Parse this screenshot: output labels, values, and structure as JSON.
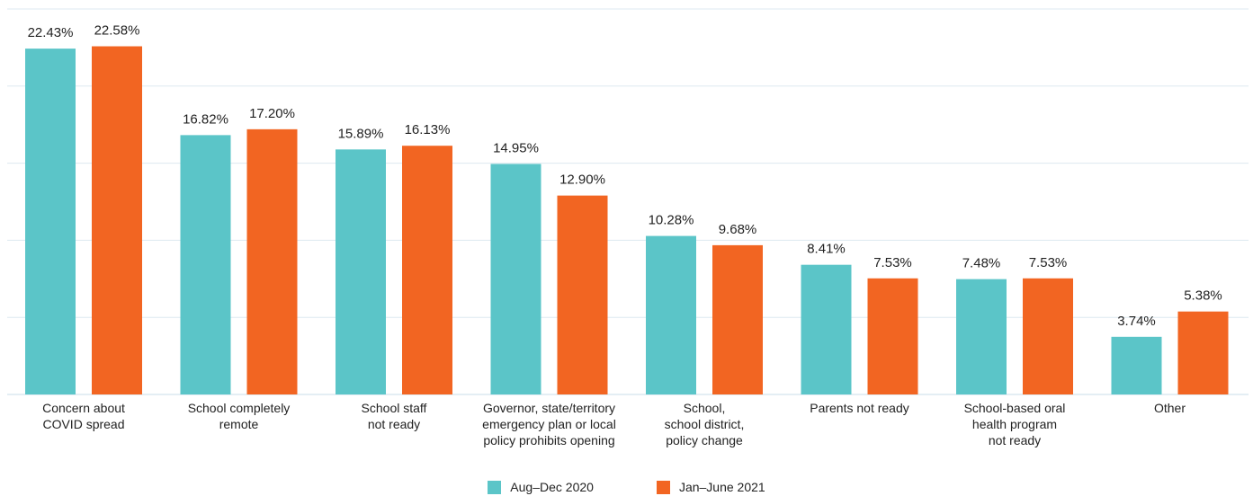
{
  "chart_data": {
    "type": "bar",
    "categories": [
      [
        "Concern about",
        "COVID spread"
      ],
      [
        "School completely",
        "remote"
      ],
      [
        "School staff",
        "not ready"
      ],
      [
        "Governor, state/territory",
        "emergency plan or local",
        "policy prohibits opening"
      ],
      [
        "School,",
        "school district,",
        "policy change"
      ],
      [
        "Parents not ready"
      ],
      [
        "School-based oral",
        "health program",
        "not ready"
      ],
      [
        "Other"
      ]
    ],
    "series": [
      {
        "name": "Aug–Dec 2020",
        "color": "#5BC5C8",
        "values": [
          22.43,
          16.82,
          15.89,
          14.95,
          10.28,
          8.41,
          7.48,
          3.74
        ],
        "labels": [
          "22.43%",
          "16.82%",
          "15.89%",
          "14.95%",
          "10.28%",
          "8.41%",
          "7.48%",
          "3.74%"
        ]
      },
      {
        "name": "Jan–June 2021",
        "color": "#F26522",
        "values": [
          22.58,
          17.2,
          16.13,
          12.9,
          9.68,
          7.53,
          7.53,
          5.38
        ],
        "labels": [
          "22.58%",
          "17.20%",
          "16.13%",
          "12.90%",
          "9.68%",
          "7.53%",
          "7.53%",
          "5.38%"
        ]
      }
    ],
    "ylim": [
      0,
      25
    ],
    "grid": true,
    "legend_position": "bottom-center",
    "title": "",
    "xlabel": "",
    "ylabel": ""
  }
}
